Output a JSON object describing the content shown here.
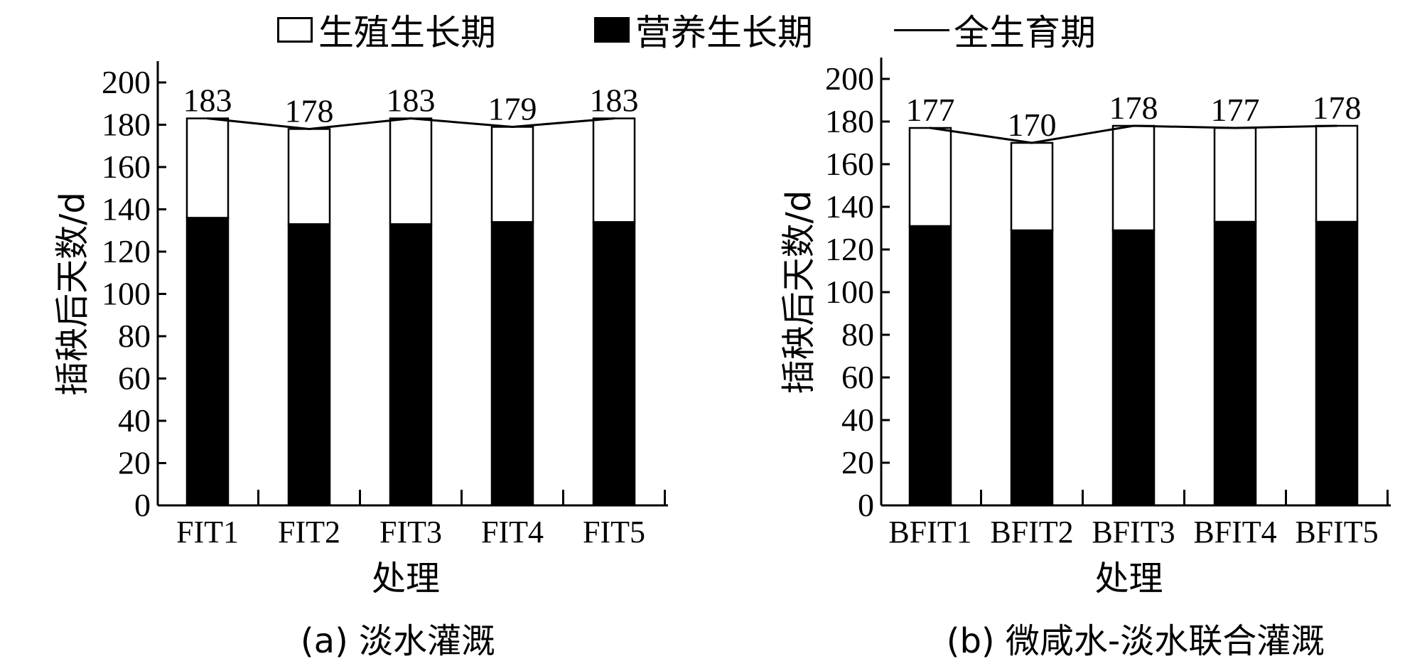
{
  "legend": {
    "reproductive": "生殖生长期",
    "vegetative": "营养生长期",
    "total": "全生育期"
  },
  "colors": {
    "reproductive": "#ffffff",
    "vegetative": "#000000",
    "line": "#000000"
  },
  "chart_data": [
    {
      "type": "bar",
      "stacked": true,
      "caption": "(a) 淡水灌溉",
      "xlabel": "处理",
      "ylabel": "插秧后天数/d",
      "ylim": [
        0,
        200
      ],
      "yticks": [
        0,
        20,
        40,
        60,
        80,
        100,
        120,
        140,
        160,
        180,
        200
      ],
      "categories": [
        "FIT1",
        "FIT2",
        "FIT3",
        "FIT4",
        "FIT5"
      ],
      "series": [
        {
          "name": "营养生长期",
          "values": [
            136,
            133,
            133,
            134,
            134
          ]
        },
        {
          "name": "生殖生长期",
          "values": [
            47,
            45,
            50,
            45,
            49
          ]
        }
      ],
      "line": {
        "name": "全生育期",
        "values": [
          183,
          178,
          183,
          179,
          183
        ]
      },
      "labels": [
        "183",
        "178",
        "183",
        "179",
        "183"
      ]
    },
    {
      "type": "bar",
      "stacked": true,
      "caption": "(b) 微咸水-淡水联合灌溉",
      "xlabel": "处理",
      "ylabel": "插秧后天数/d",
      "ylim": [
        0,
        200
      ],
      "yticks": [
        0,
        20,
        40,
        60,
        80,
        100,
        120,
        140,
        160,
        180,
        200
      ],
      "categories": [
        "BFIT1",
        "BFIT2",
        "BFIT3",
        "BFIT4",
        "BFIT5"
      ],
      "series": [
        {
          "name": "营养生长期",
          "values": [
            131,
            129,
            129,
            133,
            133
          ]
        },
        {
          "name": "生殖生长期",
          "values": [
            46,
            41,
            49,
            44,
            45
          ]
        }
      ],
      "line": {
        "name": "全生育期",
        "values": [
          177,
          170,
          178,
          177,
          178
        ]
      },
      "labels": [
        "177",
        "170",
        "178",
        "177",
        "178"
      ]
    }
  ]
}
